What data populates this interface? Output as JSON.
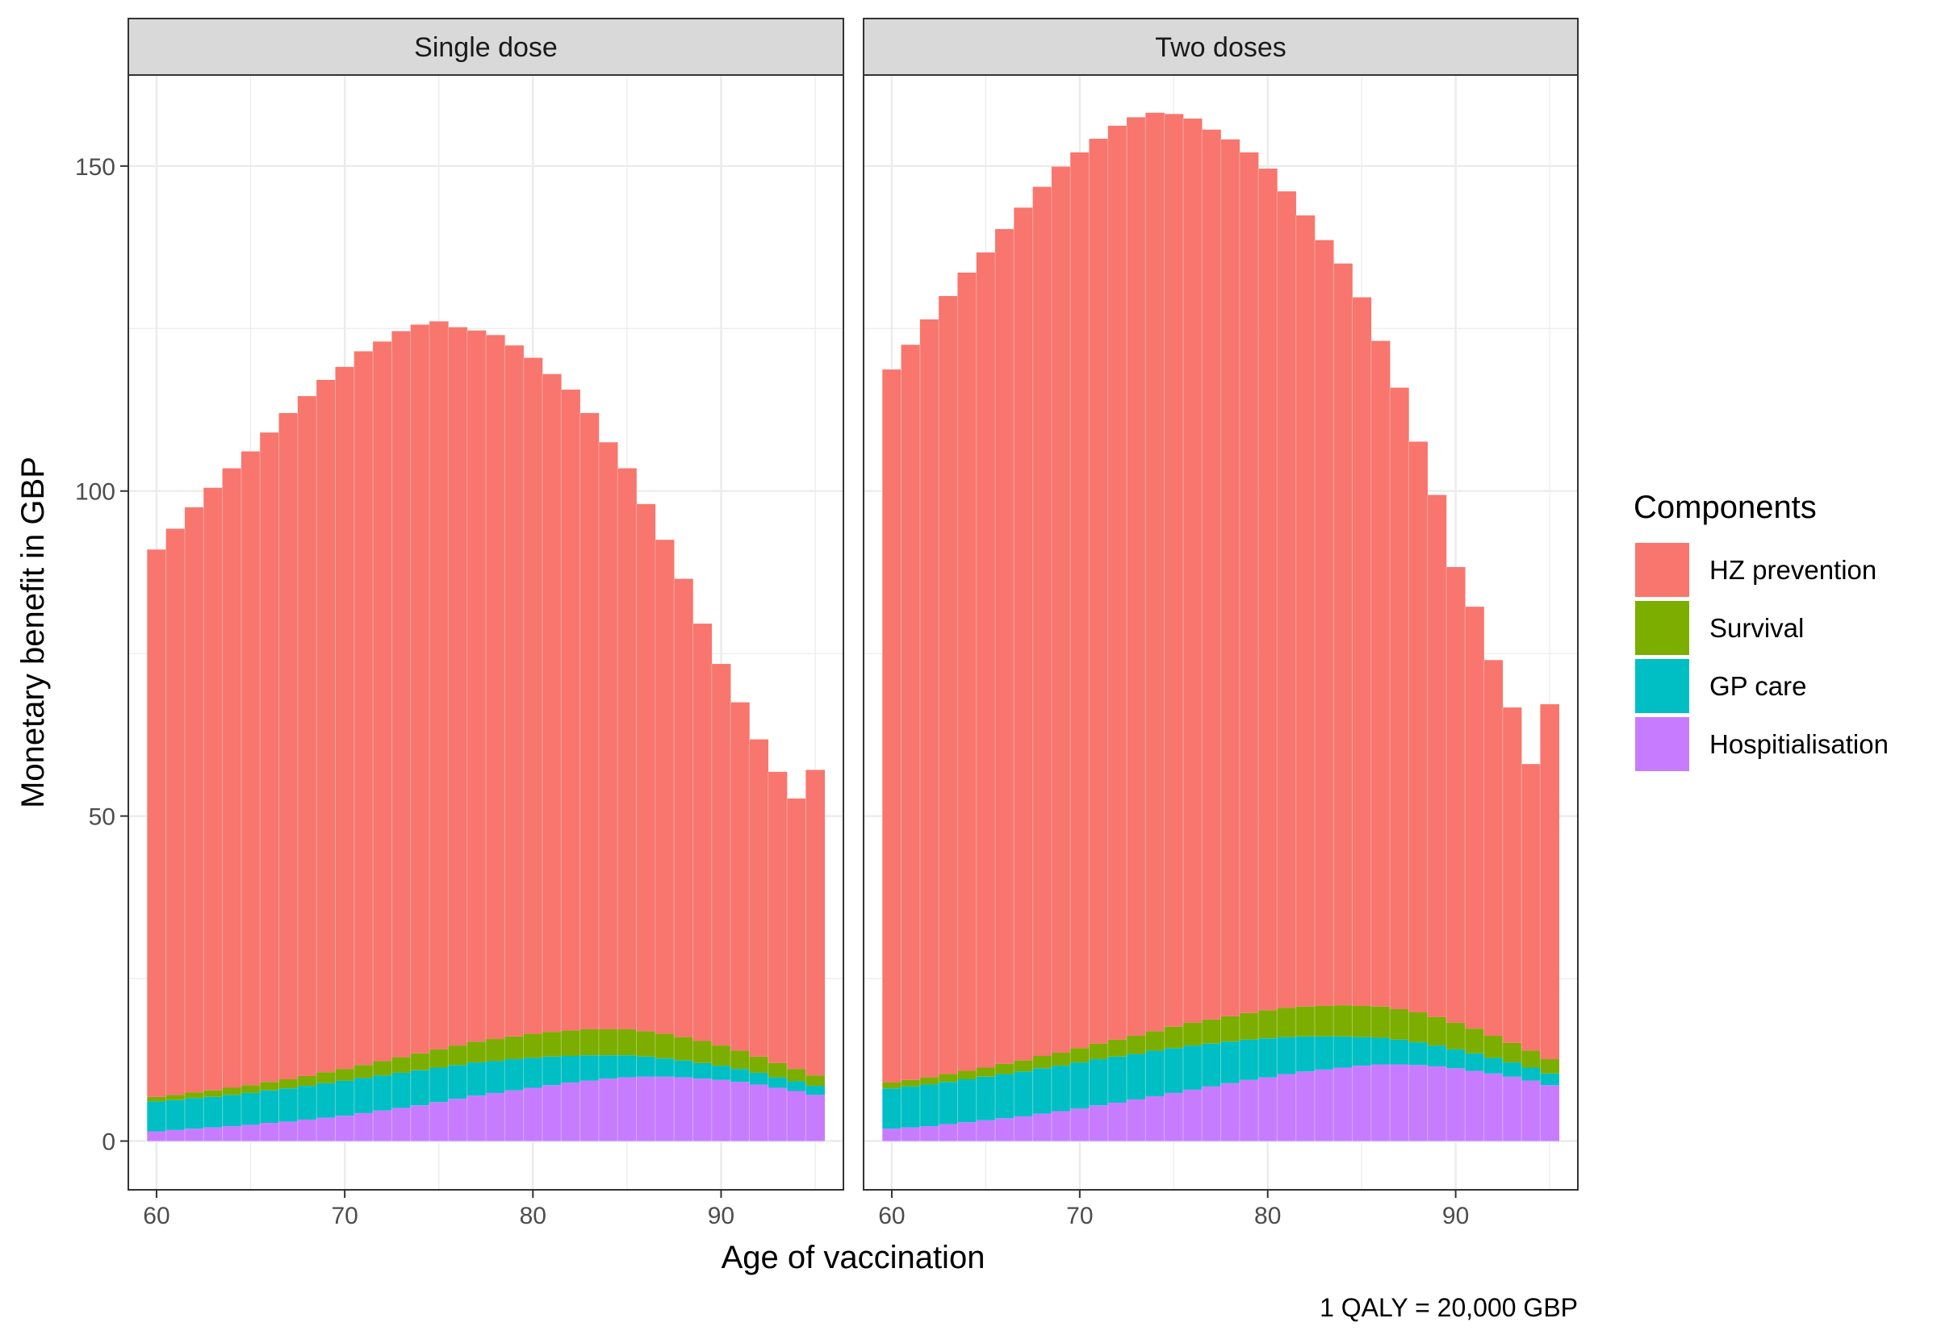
{
  "chart_data": {
    "type": "bar",
    "stacked": true,
    "xlabel": "Age of vaccination",
    "ylabel": "Monetary benefit in GBP",
    "caption": "1 QALY = 20,000 GBP",
    "legend_title": "Components",
    "legend_position": "right",
    "x_ticks": [
      60,
      70,
      80,
      90
    ],
    "y_ticks": [
      0,
      50,
      100,
      150
    ],
    "xlim": [
      58.5,
      96.5
    ],
    "ylim": [
      -7.5,
      164
    ],
    "grid": true,
    "components": [
      {
        "name": "HZ prevention",
        "color": "#F8766D"
      },
      {
        "name": "Survival",
        "color": "#7CAE00"
      },
      {
        "name": "GP care",
        "color": "#00BFC4"
      },
      {
        "name": "Hospitialisation",
        "color": "#C77CFF"
      }
    ],
    "panels": [
      {
        "title": "Single dose",
        "ages": [
          60,
          61,
          62,
          63,
          64,
          65,
          66,
          67,
          68,
          69,
          70,
          71,
          72,
          73,
          74,
          75,
          76,
          77,
          78,
          79,
          80,
          81,
          82,
          83,
          84,
          85,
          86,
          87,
          88,
          89,
          90,
          91,
          92,
          93,
          94,
          95
        ],
        "series": {
          "Hospitialisation": [
            1.5,
            1.7,
            1.9,
            2.1,
            2.3,
            2.5,
            2.8,
            3.0,
            3.3,
            3.6,
            3.9,
            4.3,
            4.7,
            5.1,
            5.5,
            6.0,
            6.5,
            7.0,
            7.4,
            7.8,
            8.2,
            8.6,
            9.0,
            9.3,
            9.6,
            9.8,
            9.9,
            9.9,
            9.8,
            9.6,
            9.4,
            9.1,
            8.7,
            8.2,
            7.7,
            7.1
          ],
          "GP care": [
            4.6,
            4.6,
            4.7,
            4.7,
            4.8,
            4.9,
            5.0,
            5.1,
            5.2,
            5.3,
            5.4,
            5.4,
            5.4,
            5.4,
            5.4,
            5.3,
            5.2,
            5.1,
            4.9,
            4.8,
            4.6,
            4.4,
            4.1,
            3.9,
            3.6,
            3.4,
            3.1,
            2.8,
            2.6,
            2.4,
            2.2,
            2.0,
            1.8,
            1.6,
            1.5,
            1.4
          ],
          "Survival": [
            0.7,
            0.8,
            0.9,
            1.0,
            1.1,
            1.2,
            1.3,
            1.4,
            1.5,
            1.7,
            1.8,
            2.0,
            2.2,
            2.4,
            2.6,
            2.8,
            3.0,
            3.2,
            3.4,
            3.5,
            3.7,
            3.8,
            3.9,
            4.0,
            4.0,
            4.0,
            3.9,
            3.8,
            3.6,
            3.4,
            3.1,
            2.8,
            2.5,
            2.2,
            1.9,
            1.6
          ],
          "HZ prevention": [
            84.2,
            87.1,
            90.0,
            92.7,
            95.3,
            97.5,
            99.9,
            102.5,
            104.6,
            106.5,
            108.0,
            109.8,
            110.7,
            111.7,
            112.1,
            112.0,
            110.5,
            109.4,
            108.3,
            106.3,
            104.0,
            101.2,
            98.6,
            94.8,
            90.3,
            86.3,
            81.1,
            76.0,
            70.5,
            64.2,
            58.7,
            53.6,
            48.8,
            44.8,
            41.6,
            47.0
          ]
        }
      },
      {
        "title": "Two doses",
        "ages": [
          60,
          61,
          62,
          63,
          64,
          65,
          66,
          67,
          68,
          69,
          70,
          71,
          72,
          73,
          74,
          75,
          76,
          77,
          78,
          79,
          80,
          81,
          82,
          83,
          84,
          85,
          86,
          87,
          88,
          89,
          90,
          91,
          92,
          93,
          94,
          95
        ],
        "series": {
          "Hospitialisation": [
            1.9,
            2.1,
            2.3,
            2.6,
            2.9,
            3.2,
            3.5,
            3.8,
            4.2,
            4.6,
            5.0,
            5.5,
            5.9,
            6.4,
            6.9,
            7.4,
            7.9,
            8.4,
            8.9,
            9.4,
            9.8,
            10.3,
            10.7,
            11.0,
            11.3,
            11.6,
            11.8,
            11.8,
            11.7,
            11.5,
            11.2,
            10.8,
            10.4,
            9.9,
            9.3,
            8.6
          ],
          "GP care": [
            6.2,
            6.3,
            6.4,
            6.5,
            6.6,
            6.7,
            6.8,
            6.9,
            7.0,
            7.0,
            7.1,
            7.1,
            7.1,
            7.0,
            7.0,
            6.9,
            6.8,
            6.6,
            6.4,
            6.2,
            6.0,
            5.7,
            5.4,
            5.1,
            4.8,
            4.4,
            4.1,
            3.8,
            3.5,
            3.2,
            2.9,
            2.7,
            2.4,
            2.2,
            2.0,
            1.8
          ],
          "Survival": [
            0.9,
            1.0,
            1.1,
            1.2,
            1.3,
            1.4,
            1.6,
            1.7,
            1.9,
            2.0,
            2.2,
            2.4,
            2.6,
            2.8,
            3.0,
            3.3,
            3.5,
            3.7,
            3.9,
            4.1,
            4.3,
            4.5,
            4.6,
            4.7,
            4.8,
            4.8,
            4.8,
            4.7,
            4.6,
            4.4,
            4.1,
            3.8,
            3.4,
            3.0,
            2.6,
            2.2
          ],
          "HZ prevention": [
            109.7,
            113.1,
            116.6,
            119.7,
            122.8,
            125.4,
            128.4,
            131.2,
            133.7,
            136.3,
            137.8,
            139.2,
            140.6,
            141.3,
            141.3,
            140.4,
            139.1,
            136.9,
            134.9,
            132.4,
            129.5,
            125.6,
            121.7,
            117.8,
            114.1,
            109.0,
            102.4,
            95.6,
            87.8,
            80.3,
            70.1,
            64.9,
            57.8,
            51.6,
            44.1,
            54.6
          ]
        }
      }
    ]
  }
}
